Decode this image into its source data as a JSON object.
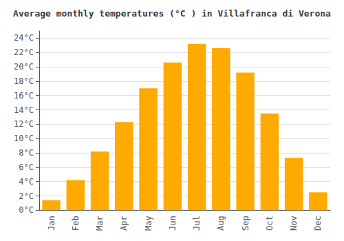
{
  "chart_data": {
    "type": "bar",
    "title": "Average monthly temperatures (°C ) in Villafranca di Verona",
    "categories": [
      "Jan",
      "Feb",
      "Mar",
      "Apr",
      "May",
      "Jun",
      "Jul",
      "Aug",
      "Sep",
      "Oct",
      "Nov",
      "Dec"
    ],
    "values": [
      1.4,
      4.2,
      8.2,
      12.3,
      17.0,
      20.6,
      23.2,
      22.6,
      19.2,
      13.5,
      7.3,
      2.5
    ],
    "color": "#FFAA00",
    "ylim": [
      0,
      25
    ],
    "yticks": [
      {
        "value": 0,
        "label": "0°C"
      },
      {
        "value": 2,
        "label": "2°C"
      },
      {
        "value": 4,
        "label": "4°C"
      },
      {
        "value": 6,
        "label": "6°C"
      },
      {
        "value": 8,
        "label": "8°C"
      },
      {
        "value": 10,
        "label": "10°C"
      },
      {
        "value": 12,
        "label": "12°C"
      },
      {
        "value": 14,
        "label": "14°C"
      },
      {
        "value": 16,
        "label": "16°C"
      },
      {
        "value": 18,
        "label": "18°C"
      },
      {
        "value": 20,
        "label": "20°C"
      },
      {
        "value": 22,
        "label": "22°C"
      },
      {
        "value": 24,
        "label": "24°C"
      }
    ],
    "grid": true
  }
}
